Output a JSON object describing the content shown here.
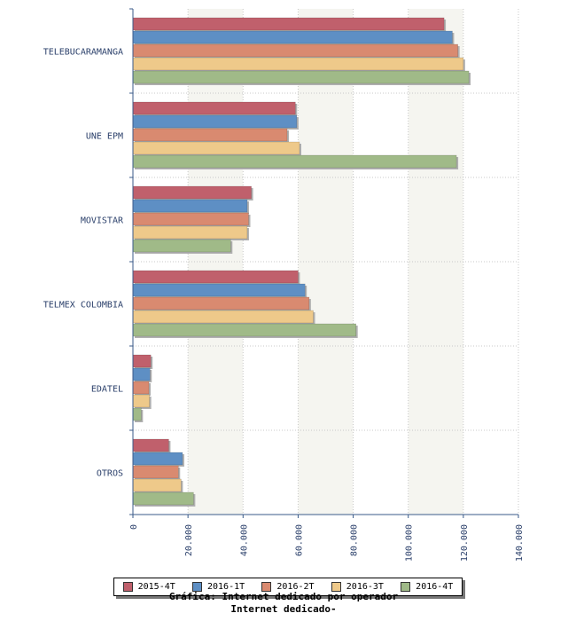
{
  "chart_data": {
    "type": "bar",
    "orientation": "horizontal",
    "categories": [
      "TELEBUCARAMANGA",
      "UNE EPM",
      "MOVISTAR",
      "TELMEX COLOMBIA",
      "EDATEL",
      "OTROS"
    ],
    "series": [
      {
        "name": "2015-4T",
        "color": "#c0606c",
        "values": [
          113000,
          59000,
          43000,
          60000,
          6500,
          13000
        ]
      },
      {
        "name": "2016-1T",
        "color": "#5e8fc4",
        "values": [
          116000,
          59500,
          41500,
          62500,
          6200,
          18000
        ]
      },
      {
        "name": "2016-2T",
        "color": "#d98a70",
        "values": [
          118000,
          56000,
          42000,
          64000,
          5800,
          16500
        ]
      },
      {
        "name": "2016-3T",
        "color": "#eec98a",
        "values": [
          120000,
          60500,
          41500,
          65500,
          6000,
          17500
        ]
      },
      {
        "name": "2016-4T",
        "color": "#a0ba88",
        "values": [
          122000,
          117500,
          35500,
          81000,
          3000,
          22000
        ]
      }
    ],
    "xlim": [
      0,
      140000
    ],
    "ticks": [
      "0",
      "20.000",
      "40.000",
      "60.000",
      "80.000",
      "100.000",
      "120.000",
      "140.000"
    ],
    "legend_position": "bottom",
    "grid": true
  },
  "caption": {
    "line1": "Gráfica: Internet dedicado por operador",
    "line2": "Internet dedicado-"
  }
}
